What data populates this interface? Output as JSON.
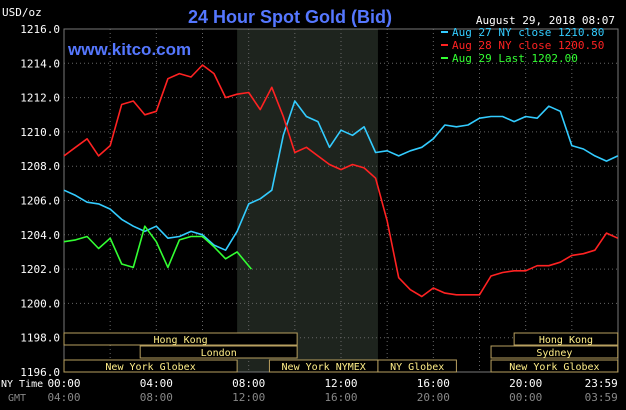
{
  "header": {
    "unit_label": "USD/oz",
    "title": "24 Hour Spot Gold (Bid)",
    "watermark": "www.kitco.com",
    "timestamp": "August 29, 2018 08:07"
  },
  "chart_data": {
    "type": "line",
    "title": "24 Hour Spot Gold (Bid)",
    "ylabel": "USD/oz",
    "ylim": [
      1196.0,
      1216.0
    ],
    "y_ticks": [
      "1216.0",
      "1214.0",
      "1212.0",
      "1210.0",
      "1208.0",
      "1206.0",
      "1204.0",
      "1202.0",
      "1200.0",
      "1198.0",
      "1196.0"
    ],
    "x_axis_ny_label": "NY Time",
    "x_axis_gmt_label": "GMT",
    "x_ticks_ny": [
      "00:00",
      "04:00",
      "08:00",
      "12:00",
      "16:00",
      "20:00",
      "23:59"
    ],
    "x_ticks_gmt": [
      "04:00",
      "08:00",
      "12:00",
      "16:00",
      "20:00",
      "00:00",
      "03:59"
    ],
    "highlight_hours": [
      7.5,
      13.6
    ],
    "legend_placement": "top-right",
    "series": [
      {
        "name": "Aug 27 NY close 1210.80",
        "color": "#33ccff",
        "hours": [
          0,
          0.5,
          1,
          1.5,
          2,
          2.5,
          3,
          3.5,
          4,
          4.5,
          5,
          5.5,
          6,
          6.5,
          7,
          7.5,
          8,
          8.5,
          9,
          9.5,
          10,
          10.5,
          11,
          11.5,
          12,
          12.5,
          13,
          13.5,
          14,
          14.5,
          15,
          15.5,
          16,
          16.5,
          17,
          17.5,
          18,
          18.5,
          19,
          19.5,
          20,
          20.5,
          21,
          21.5,
          22,
          22.5,
          23,
          23.5,
          23.99
        ],
        "values": [
          1206.6,
          1206.3,
          1205.9,
          1205.8,
          1205.5,
          1204.9,
          1204.5,
          1204.2,
          1204.5,
          1203.8,
          1203.9,
          1204.2,
          1204.0,
          1203.4,
          1203.1,
          1204.2,
          1205.8,
          1206.1,
          1206.6,
          1209.8,
          1211.8,
          1210.9,
          1210.6,
          1209.1,
          1210.1,
          1209.8,
          1210.3,
          1208.8,
          1208.9,
          1208.6,
          1208.9,
          1209.1,
          1209.6,
          1210.4,
          1210.3,
          1210.4,
          1210.8,
          1210.9,
          1210.9,
          1210.6,
          1210.9,
          1210.8,
          1211.5,
          1211.2,
          1209.2,
          1209.0,
          1208.6,
          1208.3,
          1208.6
        ]
      },
      {
        "name": "Aug 28 NY close 1200.50",
        "color": "#ff2222",
        "hours": [
          0,
          0.5,
          1,
          1.5,
          2,
          2.5,
          3,
          3.5,
          4,
          4.5,
          5,
          5.5,
          6,
          6.5,
          7,
          7.5,
          8,
          8.5,
          9,
          9.5,
          10,
          10.5,
          11,
          11.5,
          12,
          12.5,
          13,
          13.5,
          14,
          14.5,
          15,
          15.5,
          16,
          16.5,
          17,
          17.5,
          18,
          18.5,
          19,
          19.5,
          20,
          20.5,
          21,
          21.5,
          22,
          22.5,
          23,
          23.5,
          23.99
        ],
        "values": [
          1208.6,
          1209.1,
          1209.6,
          1208.6,
          1209.2,
          1211.6,
          1211.8,
          1211.0,
          1211.2,
          1213.1,
          1213.4,
          1213.2,
          1213.9,
          1213.4,
          1212.0,
          1212.2,
          1212.3,
          1211.3,
          1212.6,
          1210.9,
          1208.8,
          1209.1,
          1208.6,
          1208.1,
          1207.8,
          1208.1,
          1207.9,
          1207.3,
          1204.8,
          1201.5,
          1200.8,
          1200.4,
          1200.9,
          1200.6,
          1200.5,
          1200.5,
          1200.5,
          1201.6,
          1201.8,
          1201.9,
          1201.9,
          1202.2,
          1202.2,
          1202.4,
          1202.8,
          1202.9,
          1203.1,
          1204.1,
          1203.8
        ]
      },
      {
        "name": "Aug 29 Last 1202.00",
        "color": "#33ff33",
        "hours": [
          0,
          0.5,
          1,
          1.5,
          2,
          2.5,
          3,
          3.5,
          4,
          4.5,
          5,
          5.5,
          6,
          6.5,
          7,
          7.5,
          8.12
        ],
        "values": [
          1203.6,
          1203.7,
          1203.9,
          1203.2,
          1203.8,
          1202.3,
          1202.1,
          1204.5,
          1203.6,
          1202.1,
          1203.7,
          1203.9,
          1203.9,
          1203.3,
          1202.6,
          1203.0,
          1202.0
        ]
      }
    ]
  },
  "sessions": [
    {
      "label": "Hong Kong",
      "row": 0,
      "start": 0,
      "end": 10.1
    },
    {
      "label": "London",
      "row": 1,
      "start": 3.3,
      "end": 10.1
    },
    {
      "label": "New York Globex",
      "row": 2,
      "start": 0,
      "end": 7.5
    },
    {
      "label": "New York NYMEX",
      "row": 2,
      "start": 8.9,
      "end": 13.6
    },
    {
      "label": "NY Globex",
      "row": 2,
      "start": 13.6,
      "end": 17.0
    },
    {
      "label": "Hong Kong",
      "row": 0,
      "start": 19.5,
      "end": 23.99
    },
    {
      "label": "Sydney",
      "row": 1,
      "start": 18.5,
      "end": 23.99
    },
    {
      "label": "New York Globex",
      "row": 2,
      "start": 18.5,
      "end": 23.99
    }
  ]
}
